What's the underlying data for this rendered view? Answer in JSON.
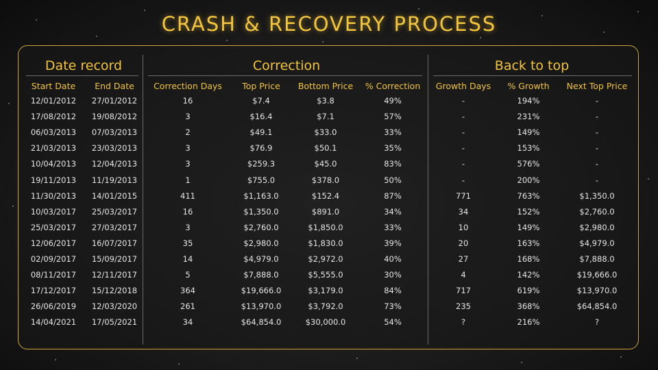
{
  "title": "CRASH & RECOVERY PROCESS",
  "colors": {
    "accent": "#f3c53d",
    "border": "#cfa53a",
    "text": "#e6e6e6"
  },
  "groups": [
    "Date record",
    "Correction",
    "Back to top"
  ],
  "columns": [
    "Start Date",
    "End Date",
    "Correction Days",
    "Top Price",
    "Bottom Price",
    "% Correction",
    "Growth Days",
    "% Growth",
    "Next Top Price"
  ],
  "rows": [
    [
      "12/01/2012",
      "27/01/2012",
      "16",
      "$7.4",
      "$3.8",
      "49%",
      "-",
      "194%",
      "-"
    ],
    [
      "17/08/2012",
      "19/08/2012",
      "3",
      "$16.4",
      "$7.1",
      "57%",
      "-",
      "231%",
      "-"
    ],
    [
      "06/03/2013",
      "07/03/2013",
      "2",
      "$49.1",
      "$33.0",
      "33%",
      "-",
      "149%",
      "-"
    ],
    [
      "21/03/2013",
      "23/03/2013",
      "3",
      "$76.9",
      "$50.1",
      "35%",
      "-",
      "153%",
      "-"
    ],
    [
      "10/04/2013",
      "12/04/2013",
      "3",
      "$259.3",
      "$45.0",
      "83%",
      "-",
      "576%",
      "-"
    ],
    [
      "19/11/2013",
      "11/19/2013",
      "1",
      "$755.0",
      "$378.0",
      "50%",
      "-",
      "200%",
      "-"
    ],
    [
      "11/30/2013",
      "14/01/2015",
      "411",
      "$1,163.0",
      "$152.4",
      "87%",
      "771",
      "763%",
      "$1,350.0"
    ],
    [
      "10/03/2017",
      "25/03/2017",
      "16",
      "$1,350.0",
      "$891.0",
      "34%",
      "34",
      "152%",
      "$2,760.0"
    ],
    [
      "25/03/2017",
      "27/03/2017",
      "3",
      "$2,760.0",
      "$1,850.0",
      "33%",
      "10",
      "149%",
      "$2,980.0"
    ],
    [
      "12/06/2017",
      "16/07/2017",
      "35",
      "$2,980.0",
      "$1,830.0",
      "39%",
      "20",
      "163%",
      "$4,979.0"
    ],
    [
      "02/09/2017",
      "15/09/2017",
      "14",
      "$4,979.0",
      "$2,972.0",
      "40%",
      "27",
      "168%",
      "$7,888.0"
    ],
    [
      "08/11/2017",
      "12/11/2017",
      "5",
      "$7,888.0",
      "$5,555.0",
      "30%",
      "4",
      "142%",
      "$19,666.0"
    ],
    [
      "17/12/2017",
      "15/12/2018",
      "364",
      "$19,666.0",
      "$3,179.0",
      "84%",
      "717",
      "619%",
      "$13,970.0"
    ],
    [
      "26/06/2019",
      "12/03/2020",
      "261",
      "$13,970.0",
      "$3,792.0",
      "73%",
      "235",
      "368%",
      "$64,854.0"
    ],
    [
      "14/04/2021",
      "17/05/2021",
      "34",
      "$64,854.0",
      "$30,000.0",
      "54%",
      "?",
      "216%",
      "?"
    ]
  ]
}
